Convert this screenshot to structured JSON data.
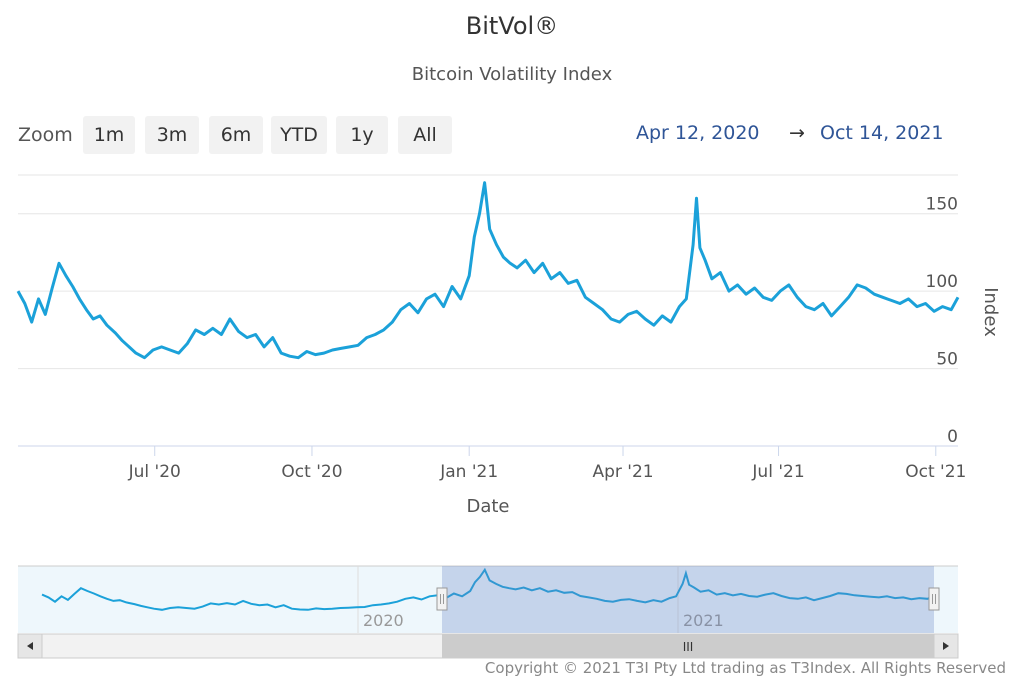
{
  "title": "BitVol®",
  "subtitle": "Bitcoin Volatility Index",
  "zoom": {
    "label": "Zoom",
    "buttons": [
      "1m",
      "3m",
      "6m",
      "YTD",
      "1y",
      "All"
    ]
  },
  "range": {
    "from": "Apr 12, 2020",
    "arrow": "→",
    "to": "Oct 14, 2021"
  },
  "copyright": "Copyright © 2021 T3I Pty Ltd trading as T3Index. All Rights Reserved",
  "navigator": {
    "year_labels": [
      "2020",
      "2021"
    ],
    "handle_glyph": "III"
  },
  "chart_data": {
    "type": "line",
    "xlabel": "Date",
    "ylabel": "Index",
    "ylim": [
      0,
      175
    ],
    "y_ticks": [
      "0",
      "50",
      "100",
      "150"
    ],
    "x_ticks": [
      "Jul '20",
      "Oct '20",
      "Jan '21",
      "Apr '21",
      "Jul '21",
      "Oct '21"
    ],
    "color": "#1ba1d9",
    "series": [
      {
        "x": [
          "2020-04-12",
          "2020-04-16",
          "2020-04-20",
          "2020-04-24",
          "2020-04-28",
          "2020-05-02",
          "2020-05-06",
          "2020-05-10",
          "2020-05-14",
          "2020-05-18",
          "2020-05-22",
          "2020-05-26",
          "2020-05-30",
          "2020-06-03",
          "2020-06-08",
          "2020-06-12",
          "2020-06-16",
          "2020-06-20",
          "2020-06-25",
          "2020-06-30",
          "2020-07-05",
          "2020-07-10",
          "2020-07-15",
          "2020-07-20",
          "2020-07-25",
          "2020-07-30",
          "2020-08-04",
          "2020-08-09",
          "2020-08-14",
          "2020-08-19",
          "2020-08-24",
          "2020-08-29",
          "2020-09-03",
          "2020-09-08",
          "2020-09-13",
          "2020-09-18",
          "2020-09-23",
          "2020-09-28",
          "2020-10-03",
          "2020-10-08",
          "2020-10-13",
          "2020-10-18",
          "2020-10-23",
          "2020-10-28",
          "2020-11-02",
          "2020-11-07",
          "2020-11-12",
          "2020-11-17",
          "2020-11-22",
          "2020-11-27",
          "2020-12-02",
          "2020-12-07",
          "2020-12-12",
          "2020-12-17",
          "2020-12-22",
          "2020-12-27",
          "2021-01-01",
          "2021-01-04",
          "2021-01-07",
          "2021-01-10",
          "2021-01-13",
          "2021-01-17",
          "2021-01-21",
          "2021-01-25",
          "2021-01-29",
          "2021-02-03",
          "2021-02-08",
          "2021-02-13",
          "2021-02-18",
          "2021-02-23",
          "2021-02-28",
          "2021-03-05",
          "2021-03-10",
          "2021-03-15",
          "2021-03-20",
          "2021-03-25",
          "2021-03-30",
          "2021-04-04",
          "2021-04-09",
          "2021-04-14",
          "2021-04-19",
          "2021-04-24",
          "2021-04-29",
          "2021-05-04",
          "2021-05-08",
          "2021-05-12",
          "2021-05-14",
          "2021-05-16",
          "2021-05-19",
          "2021-05-23",
          "2021-05-28",
          "2021-06-02",
          "2021-06-07",
          "2021-06-12",
          "2021-06-17",
          "2021-06-22",
          "2021-06-27",
          "2021-07-02",
          "2021-07-07",
          "2021-07-12",
          "2021-07-17",
          "2021-07-22",
          "2021-07-27",
          "2021-08-01",
          "2021-08-06",
          "2021-08-11",
          "2021-08-16",
          "2021-08-21",
          "2021-08-26",
          "2021-08-31",
          "2021-09-05",
          "2021-09-10",
          "2021-09-15",
          "2021-09-20",
          "2021-09-25",
          "2021-09-30",
          "2021-10-05",
          "2021-10-10",
          "2021-10-14"
        ],
        "y": [
          100,
          92,
          80,
          95,
          85,
          102,
          118,
          110,
          103,
          95,
          88,
          82,
          84,
          78,
          73,
          68,
          64,
          60,
          57,
          62,
          64,
          62,
          60,
          66,
          75,
          72,
          76,
          72,
          82,
          74,
          70,
          72,
          64,
          70,
          60,
          58,
          57,
          61,
          59,
          60,
          62,
          63,
          64,
          65,
          70,
          72,
          75,
          80,
          88,
          92,
          86,
          95,
          98,
          90,
          103,
          95,
          110,
          135,
          150,
          170,
          140,
          130,
          122,
          118,
          115,
          120,
          112,
          118,
          108,
          112,
          105,
          107,
          96,
          92,
          88,
          82,
          80,
          85,
          87,
          82,
          78,
          84,
          80,
          90,
          95,
          130,
          160,
          128,
          120,
          108,
          112,
          100,
          104,
          98,
          102,
          96,
          94,
          100,
          104,
          96,
          90,
          88,
          92,
          84,
          90,
          96,
          104,
          102,
          98,
          96,
          94,
          92,
          95,
          90,
          92,
          87,
          90,
          88,
          96
        ]
      }
    ]
  }
}
